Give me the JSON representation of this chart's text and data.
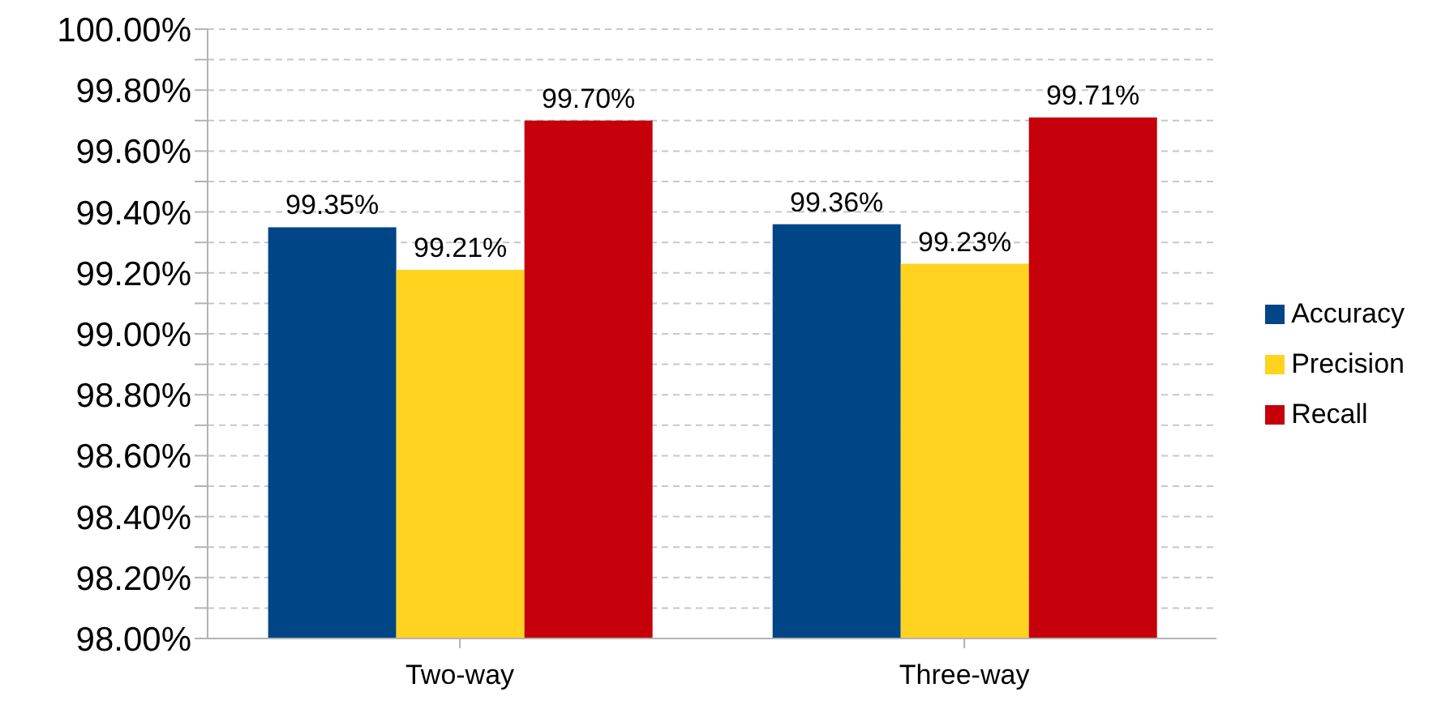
{
  "chart_data": {
    "type": "bar",
    "categories": [
      "Two-way",
      "Three-way"
    ],
    "series": [
      {
        "name": "Accuracy",
        "color": "#004586",
        "values": [
          99.35,
          99.36
        ],
        "value_labels": [
          "99.35%",
          "99.36%"
        ]
      },
      {
        "name": "Precision",
        "color": "#ffd320",
        "values": [
          99.21,
          99.23
        ],
        "value_labels": [
          "99.21%",
          "99.23%"
        ]
      },
      {
        "name": "Recall",
        "color": "#c5000b",
        "values": [
          99.7,
          99.71
        ],
        "value_labels": [
          "99.70%",
          "99.71%"
        ]
      }
    ],
    "ylim": [
      98,
      100
    ],
    "yticks": [
      {
        "value": 98,
        "label": "98.00%"
      },
      {
        "value": 98.1,
        "label": null
      },
      {
        "value": 98.2,
        "label": "98.20%"
      },
      {
        "value": 98.3,
        "label": null
      },
      {
        "value": 98.4,
        "label": "98.40%"
      },
      {
        "value": 98.5,
        "label": null
      },
      {
        "value": 98.6,
        "label": "98.60%"
      },
      {
        "value": 98.7,
        "label": null
      },
      {
        "value": 98.8,
        "label": "98.80%"
      },
      {
        "value": 98.9,
        "label": null
      },
      {
        "value": 99,
        "label": "99.00%"
      },
      {
        "value": 99.1,
        "label": null
      },
      {
        "value": 99.2,
        "label": "99.20%"
      },
      {
        "value": 99.3,
        "label": null
      },
      {
        "value": 99.4,
        "label": "99.40%"
      },
      {
        "value": 99.5,
        "label": null
      },
      {
        "value": 99.6,
        "label": "99.60%"
      },
      {
        "value": 99.7,
        "label": null
      },
      {
        "value": 99.8,
        "label": "99.80%"
      },
      {
        "value": 99.9,
        "label": null
      },
      {
        "value": 100,
        "label": "100.00%"
      }
    ],
    "grid": "y",
    "legend": "right"
  }
}
